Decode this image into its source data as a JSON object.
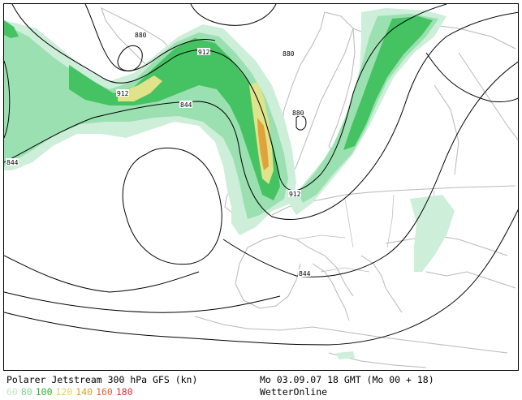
{
  "map": {
    "contour_labels": [
      {
        "text": "880"
      },
      {
        "text": "912"
      },
      {
        "text": "912"
      },
      {
        "text": "880"
      },
      {
        "text": "880"
      },
      {
        "text": "844"
      },
      {
        "text": "844"
      },
      {
        "text": "912"
      },
      {
        "text": "844"
      }
    ],
    "colors": {
      "v60": "#cdeed8",
      "v80": "#9be0b0",
      "v100": "#45c262",
      "v120": "#dfe38a",
      "v140": "#e0a23b",
      "v160": "#e06a3a",
      "v180": "#e0404a",
      "coast": "#b8b8b8",
      "contour": "#000000"
    }
  },
  "caption": {
    "title": "Polarer Jetstream 300 hPa GFS (kn)",
    "datetime": "Mo 03.09.07 18 GMT (Mo 00 + 18)",
    "source": "WetterOnline",
    "scale": [
      {
        "label": "60",
        "color": "#bfe8c8"
      },
      {
        "label": "80",
        "color": "#7fd49a"
      },
      {
        "label": "100",
        "color": "#2fae3f"
      },
      {
        "label": "120",
        "color": "#e0d060"
      },
      {
        "label": "140",
        "color": "#e0a030"
      },
      {
        "label": "160",
        "color": "#e06830"
      },
      {
        "label": "180",
        "color": "#e03040"
      }
    ]
  }
}
